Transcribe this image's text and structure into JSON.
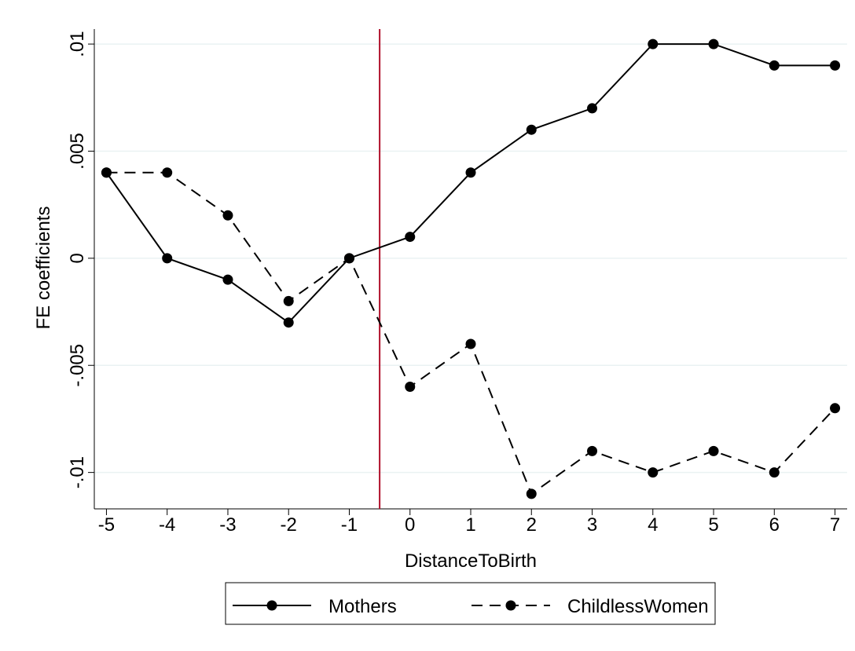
{
  "chart_data": {
    "type": "line",
    "xlabel": "DistanceToBirth",
    "ylabel": "FE coefficients",
    "x": [
      -5,
      -4,
      -3,
      -2,
      -1,
      0,
      1,
      2,
      3,
      4,
      5,
      6,
      7
    ],
    "series": [
      {
        "name": "Mothers",
        "color": "#000000",
        "line_style": "solid",
        "values": [
          0.004,
          0,
          -0.001,
          -0.003,
          0,
          0.001,
          0.004,
          0.006,
          0.007,
          0.01,
          0.01,
          0.009,
          0.009
        ]
      },
      {
        "name": "ChildlessWomen",
        "color": "#000000",
        "line_style": "dashed",
        "values": [
          0.004,
          0.004,
          0.002,
          -0.002,
          0,
          -0.006,
          -0.004,
          -0.011,
          -0.009,
          -0.01,
          -0.009,
          -0.01,
          -0.007
        ]
      }
    ],
    "xlim": [
      -5.2,
      7.2
    ],
    "ylim": [
      -0.0117,
      0.0107
    ],
    "xticks": [
      -5,
      -4,
      -3,
      -2,
      -1,
      0,
      1,
      2,
      3,
      4,
      5,
      6,
      7
    ],
    "yticks": [
      {
        "value": -0.01,
        "label": "-.01"
      },
      {
        "value": -0.005,
        "label": "-.005"
      },
      0,
      {
        "value": 0.005,
        "label": ".005"
      },
      {
        "value": 0.01,
        "label": ".01"
      }
    ],
    "vline": {
      "value": -0.5,
      "color": "#b0102a"
    },
    "grid": true,
    "legend": "bottom"
  }
}
